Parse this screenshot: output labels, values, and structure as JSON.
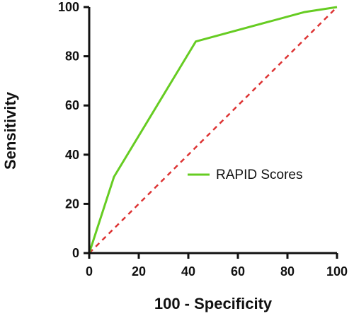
{
  "chart_data": {
    "type": "line",
    "title": "",
    "xlabel": "100 - Specificity",
    "ylabel": "Sensitivity",
    "xlim": [
      0,
      100
    ],
    "ylim": [
      0,
      100
    ],
    "xticks": [
      0,
      20,
      40,
      60,
      80,
      100
    ],
    "yticks": [
      0,
      20,
      40,
      60,
      80,
      100
    ],
    "grid": false,
    "legend_position": "center-right",
    "series": [
      {
        "name": "RAPID Scores",
        "color": "#66cc22",
        "style": "solid",
        "x": [
          0,
          10,
          43,
          87,
          100
        ],
        "y": [
          0,
          31,
          86,
          98,
          100
        ]
      },
      {
        "color": "#dd3333",
        "style": "dashed",
        "x": [
          0,
          100
        ],
        "y": [
          0,
          100
        ]
      }
    ]
  }
}
